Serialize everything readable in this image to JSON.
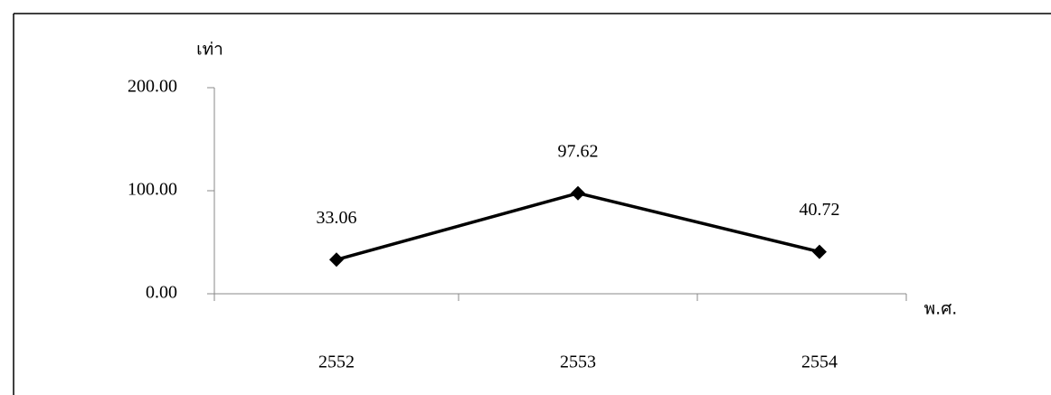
{
  "chart_data": {
    "type": "line",
    "y_label": "เท่า",
    "x_label": "พ.ศ.",
    "categories": [
      "2552",
      "2553",
      "2554"
    ],
    "values": [
      33.06,
      97.62,
      40.72
    ],
    "color": "#000000",
    "ylim": [
      0,
      200
    ],
    "yticks": [
      {
        "value": 0,
        "label": "0.00"
      },
      {
        "value": 100,
        "label": "100.00"
      },
      {
        "value": 200,
        "label": "200.00"
      }
    ]
  }
}
